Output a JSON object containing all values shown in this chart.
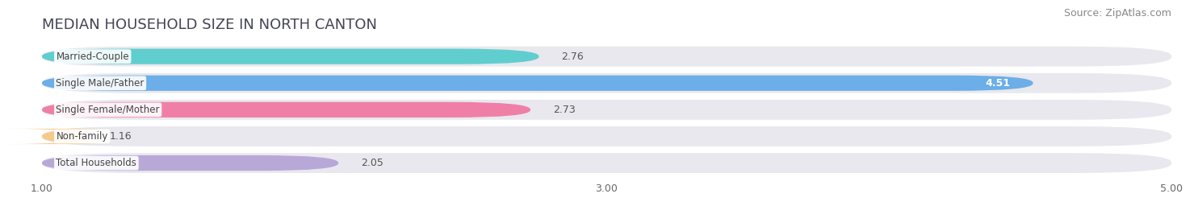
{
  "title": "MEDIAN HOUSEHOLD SIZE IN NORTH CANTON",
  "source": "Source: ZipAtlas.com",
  "categories": [
    "Married-Couple",
    "Single Male/Father",
    "Single Female/Mother",
    "Non-family",
    "Total Households"
  ],
  "values": [
    2.76,
    4.51,
    2.73,
    1.16,
    2.05
  ],
  "bar_colors": [
    "#60cece",
    "#6baee8",
    "#f07fa8",
    "#f5c98a",
    "#b8a8d8"
  ],
  "background_color": "#ffffff",
  "bar_bg_color": "#e8e8ee",
  "xmin": 1.0,
  "xmax": 5.0,
  "xticks": [
    1.0,
    3.0,
    5.0
  ],
  "title_fontsize": 13,
  "source_fontsize": 9,
  "label_fontsize": 8.5,
  "value_fontsize": 9
}
